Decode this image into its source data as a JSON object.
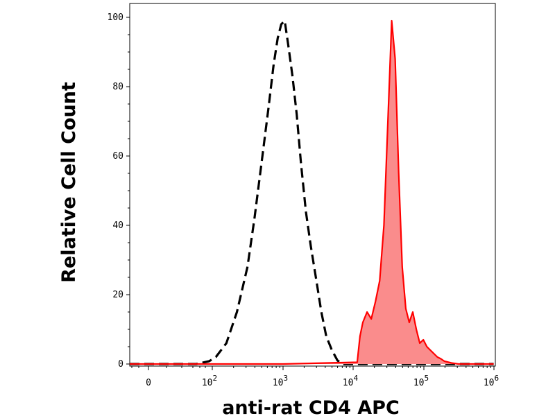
{
  "chart_data": {
    "type": "area",
    "title": "",
    "xlabel": "anti-rat CD4 APC",
    "ylabel": "Relative Cell Count",
    "xscale": "biexponential",
    "xlim": [
      -0.6,
      6.05
    ],
    "ylim": [
      0,
      100
    ],
    "x_ticks": [
      {
        "value": "0",
        "base": "0",
        "exp": ""
      },
      {
        "value": "10^2",
        "base": "10",
        "exp": "2"
      },
      {
        "value": "10^3",
        "base": "10",
        "exp": "3"
      },
      {
        "value": "10^4",
        "base": "10",
        "exp": "4"
      },
      {
        "value": "10^5",
        "base": "10",
        "exp": "5"
      },
      {
        "value": "10^6",
        "base": "10",
        "exp": "6"
      }
    ],
    "y_ticks": [
      "0",
      "20",
      "40",
      "60",
      "80",
      "100"
    ],
    "grid": false,
    "series": [
      {
        "style": "dashed",
        "color": "#000000",
        "filled": false,
        "x": [
          -0.5,
          0.0,
          0.5,
          1.0,
          1.5,
          1.9,
          2.05,
          2.2,
          2.35,
          2.5,
          2.6,
          2.7,
          2.8,
          2.87,
          2.93,
          2.98,
          3.03,
          3.08,
          3.14,
          3.2,
          3.26,
          3.33,
          3.4,
          3.48,
          3.55,
          3.62,
          3.7,
          3.78,
          3.85,
          4.0,
          4.5,
          5.0,
          6.0
        ],
        "y": [
          0,
          0,
          0,
          0,
          0,
          0.8,
          2,
          6,
          15,
          28,
          42,
          58,
          74,
          86,
          94,
          98,
          99,
          92,
          83,
          72,
          58,
          44,
          34,
          24,
          15,
          8,
          4,
          1,
          0,
          0,
          0,
          0,
          0
        ]
      },
      {
        "style": "solid",
        "color": "#ff0000",
        "fill_color": "#fa8c8c",
        "filled": true,
        "x": [
          -0.5,
          0.0,
          1.0,
          2.0,
          3.0,
          4.06,
          4.1,
          4.14,
          4.2,
          4.26,
          4.32,
          4.38,
          4.44,
          4.5,
          4.55,
          4.6,
          4.65,
          4.7,
          4.75,
          4.8,
          4.85,
          4.9,
          4.95,
          5.0,
          5.05,
          5.1,
          5.15,
          5.2,
          5.25,
          5.3,
          5.4,
          5.5,
          6.0
        ],
        "y": [
          0,
          0,
          0,
          0,
          0,
          0.5,
          8,
          12,
          15,
          13,
          18,
          24,
          40,
          72,
          99,
          88,
          55,
          28,
          16,
          12,
          15,
          10,
          6,
          7,
          5,
          4,
          3,
          2,
          1.5,
          0.8,
          0.3,
          0,
          0
        ]
      }
    ]
  }
}
